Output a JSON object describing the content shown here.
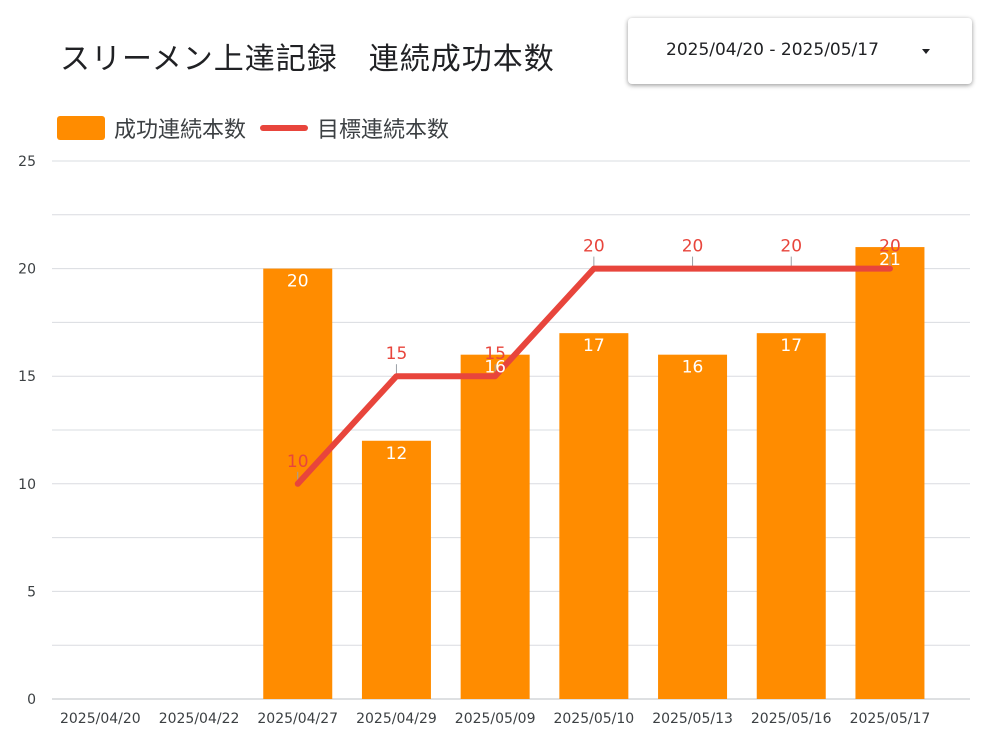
{
  "header": {
    "title": "スリーメン上達記録　連続成功本数"
  },
  "date_range": {
    "label": "2025/04/20 - 2025/05/17",
    "caret_icon": "caret-down-icon"
  },
  "legend": {
    "bar_label": "成功連続本数",
    "line_label": "目標連続本数"
  },
  "colors": {
    "bar": "#ff8c00",
    "line": "#e8453c",
    "grid": "#dadce0",
    "axis_text": "#3c4043",
    "bar_label": "#ffffff",
    "line_label": "#e8453c"
  },
  "chart_data": {
    "type": "bar",
    "categories": [
      "2025/04/20",
      "2025/04/22",
      "2025/04/27",
      "2025/04/29",
      "2025/05/09",
      "2025/05/10",
      "2025/05/13",
      "2025/05/16",
      "2025/05/17"
    ],
    "series": [
      {
        "name": "成功連続本数",
        "type": "bar",
        "values": [
          null,
          null,
          20,
          12,
          16,
          17,
          16,
          17,
          21
        ]
      },
      {
        "name": "目標連続本数",
        "type": "line",
        "values": [
          null,
          null,
          10,
          15,
          15,
          20,
          20,
          20,
          20
        ]
      }
    ],
    "ylim": [
      0,
      25
    ],
    "yticks": [
      0,
      5,
      10,
      15,
      20,
      25
    ],
    "title": "スリーメン上達記録　連続成功本数",
    "xlabel": "",
    "ylabel": "",
    "grid": true,
    "legend_position": "top-left"
  }
}
